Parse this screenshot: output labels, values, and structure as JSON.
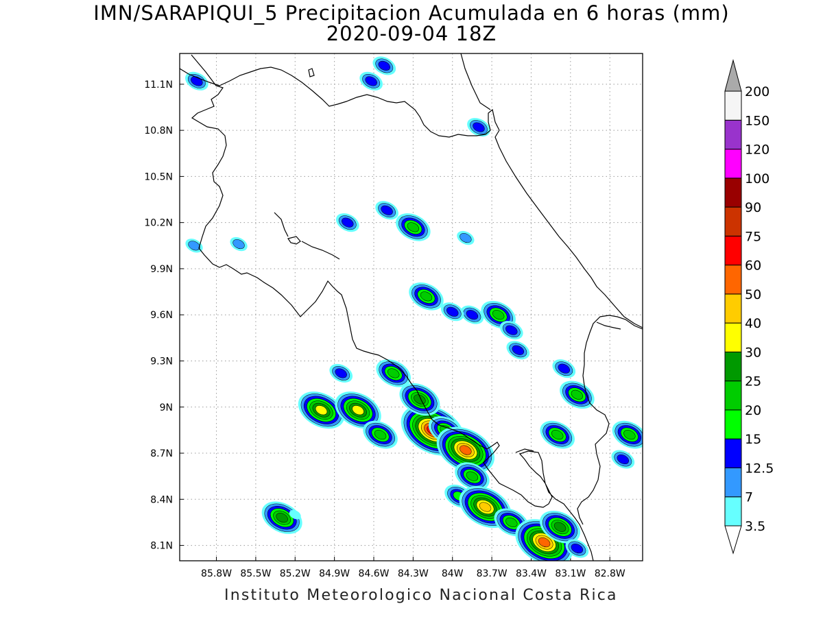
{
  "title_line1": "IMN/SARAPIQUI_5 Precipitacion Acumulada en 6 horas (mm)",
  "title_line2": "2020-09-04 18Z",
  "footer": "Instituto Meteorologico Nacional Costa Rica",
  "map": {
    "lon_range": [
      -86.08,
      -82.55
    ],
    "lat_range": [
      8.0,
      11.3
    ],
    "lon_ticks": [
      {
        "value": -85.8,
        "label": "85.8W"
      },
      {
        "value": -85.5,
        "label": "85.5W"
      },
      {
        "value": -85.2,
        "label": "85.2W"
      },
      {
        "value": -84.9,
        "label": "84.9W"
      },
      {
        "value": -84.6,
        "label": "84.6W"
      },
      {
        "value": -84.3,
        "label": "84.3W"
      },
      {
        "value": -84.0,
        "label": "84W"
      },
      {
        "value": -83.7,
        "label": "83.7W"
      },
      {
        "value": -83.4,
        "label": "83.4W"
      },
      {
        "value": -83.1,
        "label": "83.1W"
      },
      {
        "value": -82.8,
        "label": "82.8W"
      }
    ],
    "lat_ticks": [
      {
        "value": 11.1,
        "label": "11.1N"
      },
      {
        "value": 10.8,
        "label": "10.8N"
      },
      {
        "value": 10.5,
        "label": "10.5N"
      },
      {
        "value": 10.2,
        "label": "10.2N"
      },
      {
        "value": 9.9,
        "label": "9.9N"
      },
      {
        "value": 9.6,
        "label": "9.6N"
      },
      {
        "value": 9.3,
        "label": "9.3N"
      },
      {
        "value": 9.0,
        "label": "9N"
      },
      {
        "value": 8.7,
        "label": "8.7N"
      },
      {
        "value": 8.4,
        "label": "8.4N"
      },
      {
        "value": 8.1,
        "label": "8.1N"
      }
    ]
  },
  "legend": {
    "colors": [
      "#66ffff",
      "#3399ff",
      "#0000ff",
      "#00ff00",
      "#00cc00",
      "#009900",
      "#ffff00",
      "#ffcc00",
      "#ff6600",
      "#ff0000",
      "#cc3300",
      "#990000",
      "#ff00ff",
      "#9933cc",
      "#f5f5f5",
      "#aaaaaa"
    ],
    "labels": [
      "3.5",
      "7",
      "12.5",
      "15",
      "20",
      "25",
      "30",
      "40",
      "50",
      "60",
      "75",
      "90",
      "100",
      "120",
      "150",
      "200"
    ]
  },
  "precip_cells": [
    {
      "lon": -85.3,
      "lat": 8.28,
      "level": 5
    },
    {
      "lon": -85.0,
      "lat": 8.98,
      "level": 6
    },
    {
      "lon": -84.72,
      "lat": 8.98,
      "level": 6
    },
    {
      "lon": -84.55,
      "lat": 8.82,
      "level": 4
    },
    {
      "lon": -84.15,
      "lat": 8.85,
      "level": 9
    },
    {
      "lon": -84.05,
      "lat": 8.85,
      "level": 4
    },
    {
      "lon": -84.25,
      "lat": 9.05,
      "level": 5
    },
    {
      "lon": -83.9,
      "lat": 8.72,
      "level": 8
    },
    {
      "lon": -83.85,
      "lat": 8.55,
      "level": 4
    },
    {
      "lon": -83.95,
      "lat": 8.42,
      "level": 3
    },
    {
      "lon": -83.75,
      "lat": 8.35,
      "level": 7
    },
    {
      "lon": -83.55,
      "lat": 8.25,
      "level": 4
    },
    {
      "lon": -83.3,
      "lat": 8.12,
      "level": 8
    },
    {
      "lon": -83.18,
      "lat": 8.22,
      "level": 5
    },
    {
      "lon": -83.05,
      "lat": 8.08,
      "level": 2
    },
    {
      "lon": -84.45,
      "lat": 9.22,
      "level": 4
    },
    {
      "lon": -84.85,
      "lat": 9.22,
      "level": 2
    },
    {
      "lon": -83.05,
      "lat": 9.08,
      "level": 4
    },
    {
      "lon": -83.2,
      "lat": 8.82,
      "level": 4
    },
    {
      "lon": -82.65,
      "lat": 8.82,
      "level": 4
    },
    {
      "lon": -82.7,
      "lat": 8.66,
      "level": 2
    },
    {
      "lon": -83.85,
      "lat": 9.6,
      "level": 2
    },
    {
      "lon": -83.65,
      "lat": 9.6,
      "level": 4
    },
    {
      "lon": -83.55,
      "lat": 9.5,
      "level": 2
    },
    {
      "lon": -83.5,
      "lat": 9.37,
      "level": 2
    },
    {
      "lon": -83.15,
      "lat": 9.25,
      "level": 2
    },
    {
      "lon": -84.2,
      "lat": 9.72,
      "level": 4
    },
    {
      "lon": -84.5,
      "lat": 10.28,
      "level": 2
    },
    {
      "lon": -84.3,
      "lat": 10.17,
      "level": 4
    },
    {
      "lon": -84.8,
      "lat": 10.2,
      "level": 2
    },
    {
      "lon": -85.95,
      "lat": 11.12,
      "level": 2
    },
    {
      "lon": -84.62,
      "lat": 11.12,
      "level": 2
    },
    {
      "lon": -84.52,
      "lat": 11.22,
      "level": 2
    },
    {
      "lon": -83.8,
      "lat": 10.82,
      "level": 2
    },
    {
      "lon": -83.9,
      "lat": 10.1,
      "level": 1
    },
    {
      "lon": -85.63,
      "lat": 10.06,
      "level": 1
    },
    {
      "lon": -85.97,
      "lat": 10.05,
      "level": 1
    },
    {
      "lon": -84.0,
      "lat": 9.62,
      "level": 2
    },
    {
      "lon": -85.2,
      "lat": 8.3,
      "level": 0
    }
  ]
}
